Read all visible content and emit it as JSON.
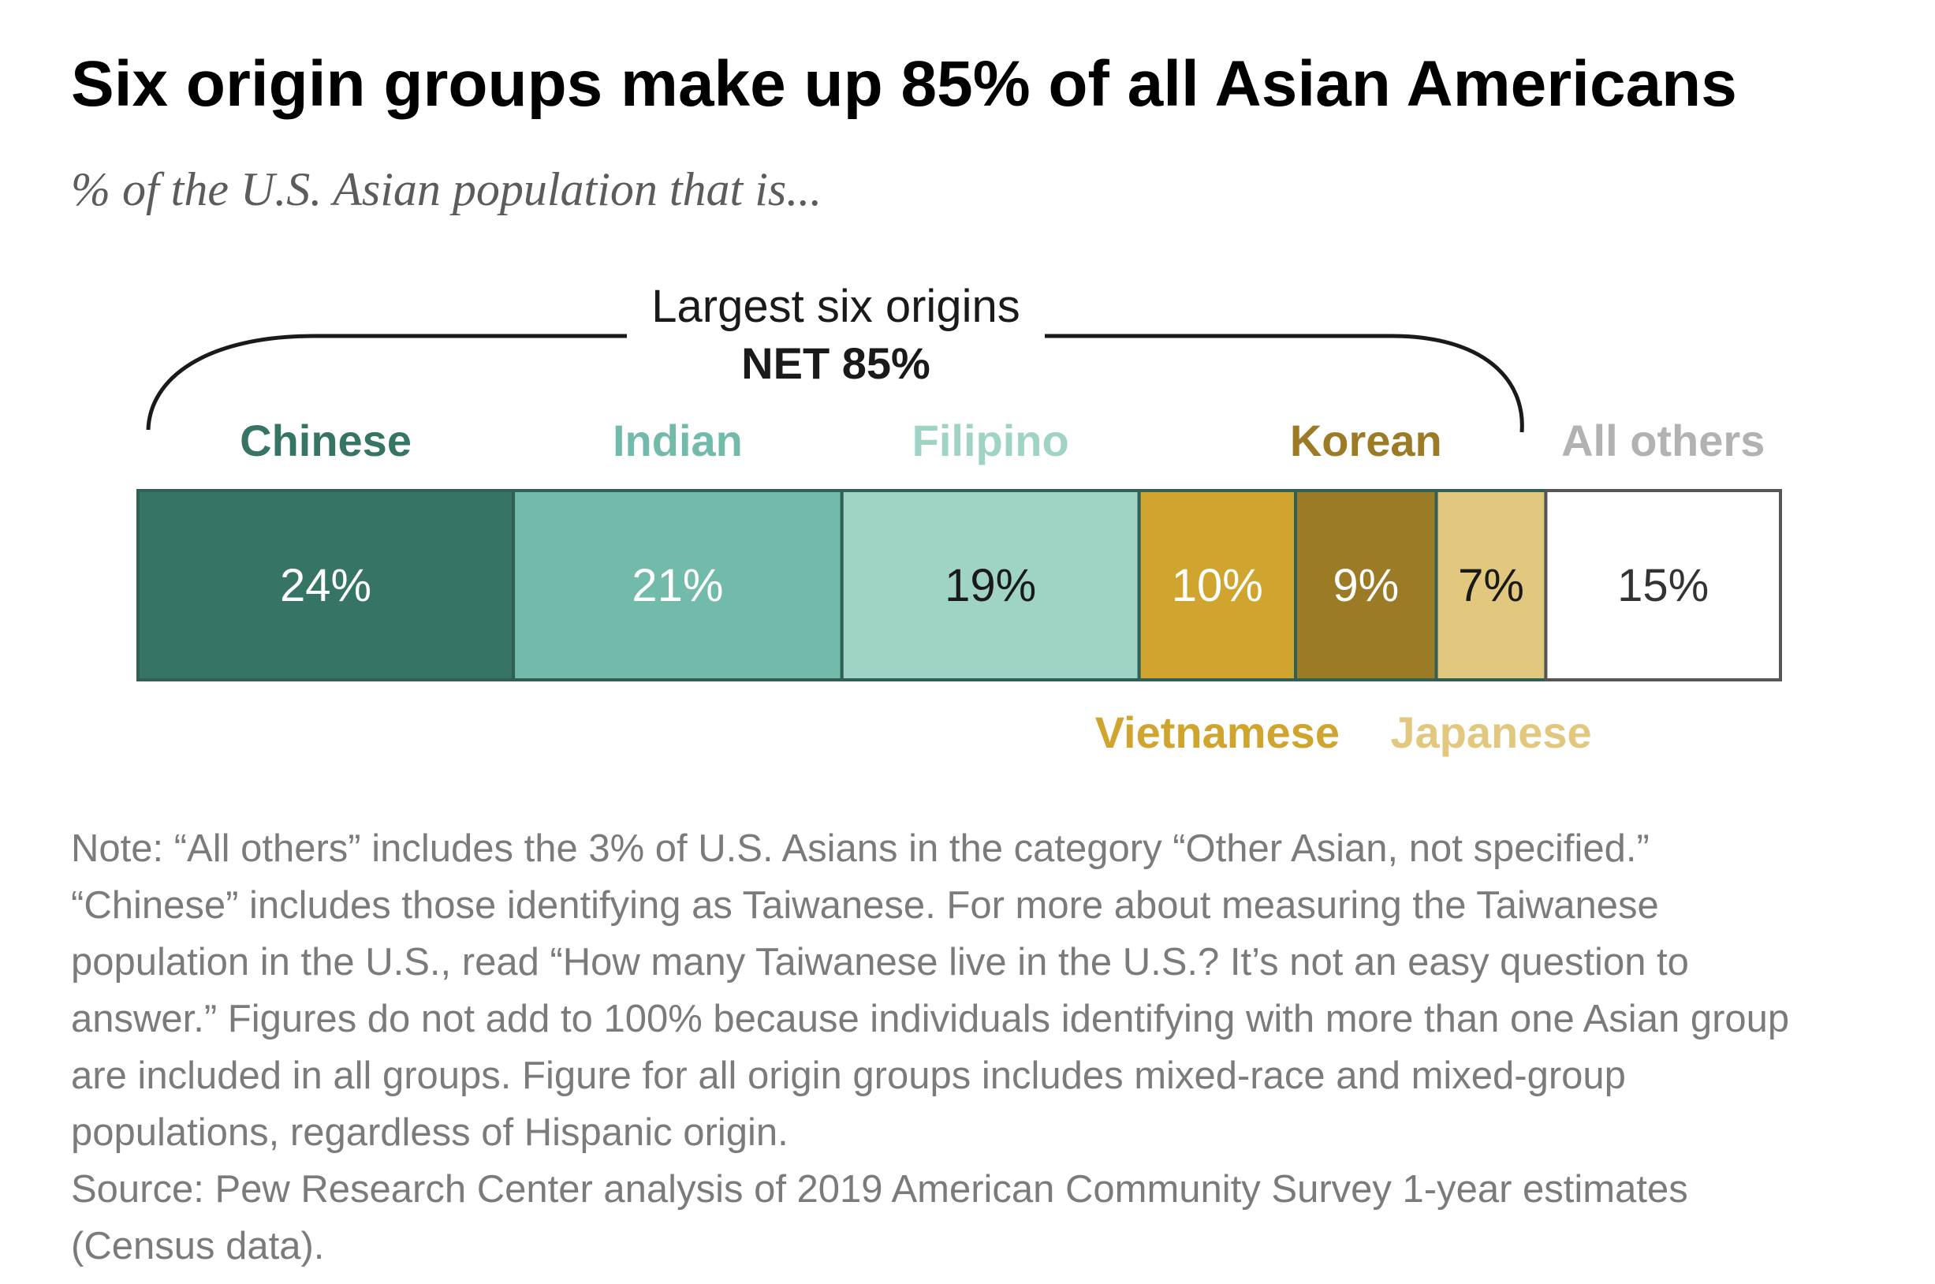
{
  "title": "Six origin groups make up 85% of all Asian Americans",
  "subtitle": "% of the U.S. Asian population that is...",
  "bracket": {
    "label": "Largest six origins",
    "net": "NET 85%"
  },
  "chart_data": {
    "type": "bar",
    "orientation": "horizontal-stacked",
    "categories": [
      "Chinese",
      "Indian",
      "Filipino",
      "Vietnamese",
      "Korean",
      "Japanese",
      "All others"
    ],
    "values": [
      24,
      21,
      19,
      10,
      9,
      7,
      15
    ],
    "value_labels": [
      "24%",
      "21%",
      "19%",
      "10%",
      "9%",
      "7%",
      "15%"
    ],
    "colors": [
      "#367466",
      "#72bbab",
      "#9fd3c6",
      "#cfa52f",
      "#9c7b26",
      "#e2c77e",
      "#ffffff"
    ],
    "label_colors": [
      "#367466",
      "#72bbab",
      "#9fd3c6",
      "#cfa52f",
      "#9c7b26",
      "#e2c77e",
      "#b2b2b2"
    ],
    "value_text_colors": [
      "#ffffff",
      "#ffffff",
      "#1a1a1a",
      "#ffffff",
      "#ffffff",
      "#1a1a1a",
      "#333333"
    ],
    "label_positions": [
      "top",
      "top",
      "top",
      "bottom",
      "top",
      "bottom",
      "top"
    ]
  },
  "note": "Note: “All others” includes the 3% of U.S. Asians in the category “Other Asian, not specified.” “Chinese” includes those identifying as Taiwanese. For more about measuring the Taiwanese population in the U.S., read “How many Taiwanese live in the U.S.? It’s not an easy question to answer.” Figures do not add to 100% because individuals identifying with more than one Asian group are included in all groups. Figure for all origin groups includes mixed-race and mixed-group populations, regardless of Hispanic origin.",
  "source": "Source: Pew Research Center analysis of 2019 American Community Survey 1-year estimates (Census data)."
}
